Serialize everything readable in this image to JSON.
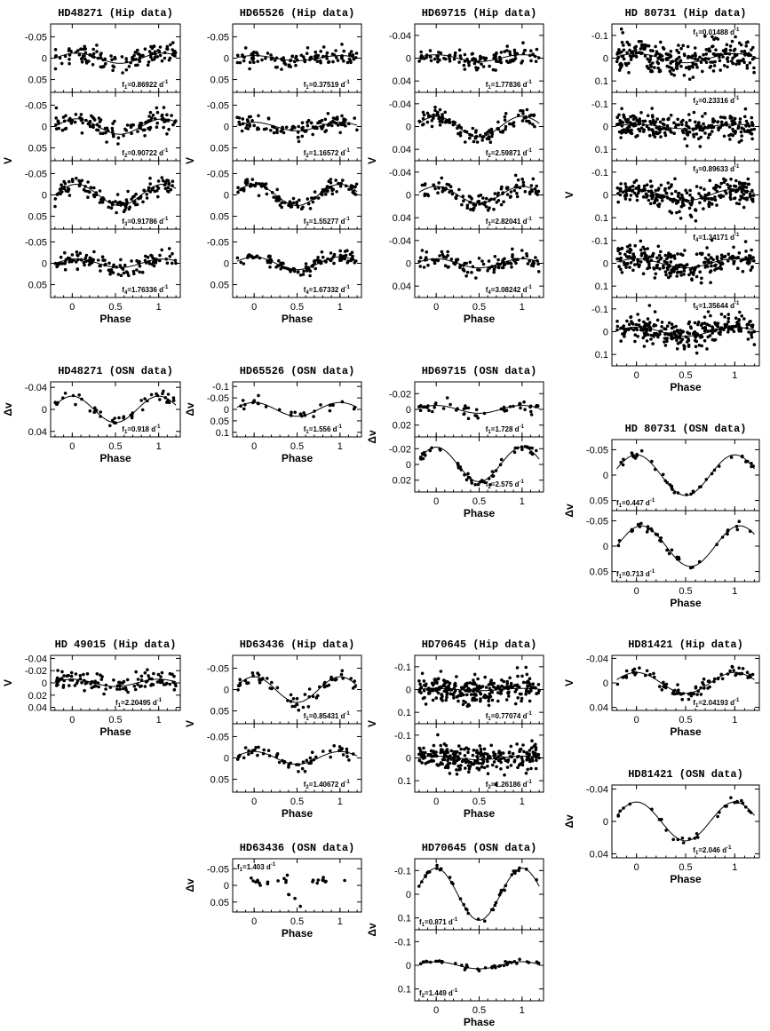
{
  "figure": {
    "x_label": "Phase",
    "x_ticks": [
      "0",
      "0.5",
      "1"
    ]
  },
  "chart_data": [
    {
      "type": "scatter",
      "title": "HD48271 (Hip data)",
      "ylabel": "V",
      "panels": [
        {
          "ylim": [
            0.08,
            -0.08
          ],
          "yticks": [
            "-0.05",
            "0",
            "0.05"
          ],
          "flabel": "f1=0.86922 d-1",
          "amp": 0.012,
          "scatter": 0.012,
          "npts": 120,
          "phase": 0.55
        },
        {
          "ylim": [
            0.08,
            -0.08
          ],
          "yticks": [
            "-0.05",
            "0",
            "0.05"
          ],
          "flabel": "f2=0.90722 d-1",
          "amp": 0.018,
          "scatter": 0.012,
          "npts": 120,
          "phase": 0.55
        },
        {
          "ylim": [
            0.08,
            -0.08
          ],
          "yticks": [
            "-0.05",
            "0",
            "0.05"
          ],
          "flabel": "f3=0.91786 d-1",
          "amp": 0.025,
          "scatter": 0.01,
          "npts": 120,
          "phase": 0.55
        },
        {
          "ylim": [
            0.08,
            -0.08
          ],
          "yticks": [
            "-0.05",
            "0",
            "0.05"
          ],
          "flabel": "f4=1.76336 d-1",
          "amp": 0.01,
          "scatter": 0.01,
          "npts": 120,
          "phase": 0.55
        }
      ]
    },
    {
      "type": "scatter",
      "title": "HD65526 (Hip data)",
      "ylabel": "V",
      "panels": [
        {
          "ylim": [
            0.08,
            -0.08
          ],
          "yticks": [
            "-0.05",
            "0",
            "0.05"
          ],
          "flabel": "f1=0.37519 d-1",
          "amp": 0.006,
          "scatter": 0.01,
          "npts": 110,
          "phase": 0.5
        },
        {
          "ylim": [
            0.08,
            -0.08
          ],
          "yticks": [
            "-0.05",
            "0",
            "0.05"
          ],
          "flabel": "f2=1.16572 d-1",
          "amp": 0.01,
          "scatter": 0.01,
          "npts": 110,
          "phase": 0.5
        },
        {
          "ylim": [
            0.08,
            -0.08
          ],
          "yticks": [
            "-0.05",
            "0",
            "0.05"
          ],
          "flabel": "f3=1.55277 d-1",
          "amp": 0.025,
          "scatter": 0.008,
          "npts": 110,
          "phase": 0.5
        },
        {
          "ylim": [
            0.08,
            -0.08
          ],
          "yticks": [
            "-0.05",
            "0",
            "0.05"
          ],
          "flabel": "f4=1.67332 d-1",
          "amp": 0.015,
          "scatter": 0.008,
          "npts": 110,
          "phase": 0.5
        }
      ]
    },
    {
      "type": "scatter",
      "title": "HD69715 (Hip data)",
      "ylabel": "V",
      "panels": [
        {
          "ylim": [
            0.06,
            -0.06
          ],
          "yticks": [
            "-0.04",
            "0",
            "0.04"
          ],
          "flabel": "f1=1.77836 d-1",
          "amp": 0.006,
          "scatter": 0.008,
          "npts": 110,
          "phase": 0.5
        },
        {
          "ylim": [
            0.06,
            -0.06
          ],
          "yticks": [
            "-0.04",
            "0",
            "0.04"
          ],
          "flabel": "f2=2.59871 d-1",
          "amp": 0.018,
          "scatter": 0.008,
          "npts": 110,
          "phase": 0.5
        },
        {
          "ylim": [
            0.06,
            -0.06
          ],
          "yticks": [
            "-0.04",
            "0",
            "0.04"
          ],
          "flabel": "f3=2.82041 d-1",
          "amp": 0.015,
          "scatter": 0.008,
          "npts": 110,
          "phase": 0.5
        },
        {
          "ylim": [
            0.06,
            -0.06
          ],
          "yticks": [
            "-0.04",
            "0",
            "0.04"
          ],
          "flabel": "f4=3.08242 d-1",
          "amp": 0.008,
          "scatter": 0.008,
          "npts": 110,
          "phase": 0.5
        }
      ]
    },
    {
      "type": "scatter",
      "title": "HD 80731 (Hip data)",
      "ylabel": "V",
      "panels": [
        {
          "ylim": [
            0.15,
            -0.15
          ],
          "yticks": [
            "-0.1",
            "0",
            "0.1"
          ],
          "flabel": "f1=0.01488 d-1",
          "amp": 0.02,
          "scatter": 0.035,
          "npts": 260,
          "phase": 0.5
        },
        {
          "ylim": [
            0.15,
            -0.15
          ],
          "yticks": [
            "-0.1",
            "0",
            "0.1"
          ],
          "flabel": "f2=0.23316 d-1",
          "amp": 0.01,
          "scatter": 0.03,
          "npts": 260,
          "phase": 0.5
        },
        {
          "ylim": [
            0.15,
            -0.15
          ],
          "yticks": [
            "-0.1",
            "0",
            "0.1"
          ],
          "flabel": "f3=0.89633 d-1",
          "amp": 0.025,
          "scatter": 0.03,
          "npts": 260,
          "phase": 0.5
        },
        {
          "ylim": [
            0.15,
            -0.15
          ],
          "yticks": [
            "-0.1",
            "0",
            "0.1"
          ],
          "flabel": "f4=1.34171 d-1",
          "amp": 0.02,
          "scatter": 0.03,
          "npts": 260,
          "phase": 0.5
        },
        {
          "ylim": [
            0.15,
            -0.15
          ],
          "yticks": [
            "-0.1",
            "0",
            "0.1"
          ],
          "flabel": "f5=1.35644 d-1",
          "amp": 0.02,
          "scatter": 0.03,
          "npts": 260,
          "phase": 0.5
        }
      ]
    },
    {
      "type": "scatter",
      "title": "HD48271 (OSN data)",
      "ylabel": "Δv",
      "panels": [
        {
          "ylim": [
            0.05,
            -0.05
          ],
          "yticks": [
            "-0.04",
            "0",
            "0.04"
          ],
          "flabel": "f1=0.918 d-1",
          "amp": 0.024,
          "scatter": 0.006,
          "npts": 45,
          "phase": 0.5
        }
      ]
    },
    {
      "type": "scatter",
      "title": "HD65526 (OSN data)",
      "ylabel": "Δv",
      "panels": [
        {
          "ylim": [
            0.12,
            -0.12
          ],
          "yticks": [
            "-0.1",
            "-0.05",
            "0",
            "0.05",
            "0.1"
          ],
          "flabel": "f1=1.556 d-1",
          "amp": 0.03,
          "scatter": 0.015,
          "npts": 30,
          "phase": 0.5
        }
      ]
    },
    {
      "type": "scatter",
      "title": "HD69715 (OSN data)",
      "ylabel": "Δv",
      "panels": [
        {
          "ylim": [
            0.035,
            -0.035
          ],
          "yticks": [
            "-0.02",
            "0",
            "0.02"
          ],
          "flabel": "f1=1.728 d-1",
          "amp": 0.005,
          "scatter": 0.004,
          "npts": 50,
          "phase": 0.5
        },
        {
          "ylim": [
            0.035,
            -0.035
          ],
          "yticks": [
            "-0.02",
            "0",
            "0.02"
          ],
          "flabel": "f2=2.575 d-1",
          "amp": 0.022,
          "scatter": 0.003,
          "npts": 50,
          "phase": 0.5
        }
      ]
    },
    {
      "type": "scatter",
      "title": "HD 80731 (OSN data)",
      "ylabel": "Δv",
      "panels": [
        {
          "ylim": [
            0.07,
            -0.07
          ],
          "yticks": [
            "-0.05",
            "0",
            "0.05"
          ],
          "flabel": "f1=0.447 d-1",
          "amp": 0.04,
          "scatter": 0.004,
          "npts": 40,
          "phase": 0.5
        },
        {
          "ylim": [
            0.07,
            -0.07
          ],
          "yticks": [
            "-0.05",
            "0",
            "0.05"
          ],
          "flabel": "f1=0.713 d-1",
          "amp": 0.04,
          "scatter": 0.004,
          "npts": 40,
          "phase": 0.55
        }
      ]
    },
    {
      "type": "scatter",
      "title": "HD 49015 (Hip data)",
      "ylabel": "V",
      "panels": [
        {
          "ylim": [
            0.045,
            -0.045
          ],
          "yticks": [
            "-0.04",
            "-0.02",
            "0",
            "0.02",
            "0.04"
          ],
          "flabel": "f1=2.20495 d-1",
          "amp": 0.006,
          "scatter": 0.008,
          "npts": 110,
          "phase": 0.5
        }
      ]
    },
    {
      "type": "scatter",
      "title": "HD63436 (Hip data)",
      "ylabel": "V",
      "panels": [
        {
          "ylim": [
            0.08,
            -0.08
          ],
          "yticks": [
            "-0.05",
            "0",
            "0.05"
          ],
          "flabel": "f1=0.85431 d-1",
          "amp": 0.03,
          "scatter": 0.008,
          "npts": 60,
          "phase": 0.5
        },
        {
          "ylim": [
            0.08,
            -0.08
          ],
          "yticks": [
            "-0.05",
            "0",
            "0.05"
          ],
          "flabel": "f2=1.40672 d-1",
          "amp": 0.015,
          "scatter": 0.008,
          "npts": 60,
          "phase": 0.5
        }
      ]
    },
    {
      "type": "scatter",
      "title": "HD70645 (Hip data)",
      "ylabel": "V",
      "panels": [
        {
          "ylim": [
            0.15,
            -0.15
          ],
          "yticks": [
            "-0.1",
            "0",
            "0.1"
          ],
          "flabel": "f1=0.77074 d-1",
          "amp": 0.005,
          "scatter": 0.03,
          "npts": 260,
          "phase": 0.5
        },
        {
          "ylim": [
            0.15,
            -0.15
          ],
          "yticks": [
            "-0.1",
            "0",
            "0.1"
          ],
          "flabel": "f2=1.26186 d-1",
          "amp": 0.008,
          "scatter": 0.03,
          "npts": 260,
          "phase": 0.5
        }
      ]
    },
    {
      "type": "scatter",
      "title": "HD81421 (Hip data)",
      "ylabel": "V",
      "panels": [
        {
          "ylim": [
            0.045,
            -0.045
          ],
          "yticks": [
            "-0.04",
            "0",
            "0.04"
          ],
          "flabel": "f1=2.04193 d-1",
          "amp": 0.017,
          "scatter": 0.005,
          "npts": 80,
          "phase": 0.5
        }
      ]
    },
    {
      "type": "scatter",
      "title": "HD81421 (OSN data)",
      "ylabel": "Δv",
      "panels": [
        {
          "ylim": [
            0.045,
            -0.045
          ],
          "yticks": [
            "-0.04",
            "0",
            "0.04"
          ],
          "flabel": "f1=2.046 d-1",
          "amp": 0.024,
          "scatter": 0.003,
          "npts": 30,
          "phase": 0.5
        }
      ]
    },
    {
      "type": "scatter",
      "title": "HD63436 (OSN data)",
      "ylabel": "Δv",
      "panels": [
        {
          "ylim": [
            0.08,
            -0.08
          ],
          "yticks": [
            "-0.05",
            "0",
            "0.05"
          ],
          "flabel": "f1=1.403 d-1",
          "amp": 0.0,
          "scatter": 0.015,
          "npts": 28,
          "phase": 0.5,
          "nocurve": true
        }
      ]
    },
    {
      "type": "scatter",
      "title": "HD70645 (OSN data)",
      "ylabel": "Δv",
      "panels": [
        {
          "ylim": [
            0.15,
            -0.15
          ],
          "yticks": [
            "-0.1",
            "0",
            "0.1"
          ],
          "flabel": "f1=0.871 d-1",
          "amp": 0.11,
          "scatter": 0.006,
          "npts": 40,
          "phase": 0.5
        },
        {
          "ylim": [
            0.15,
            -0.15
          ],
          "yticks": [
            "-0.1",
            "0",
            "0.1"
          ],
          "flabel": "f2=1.449 d-1",
          "amp": 0.015,
          "scatter": 0.005,
          "npts": 40,
          "phase": 0.5
        }
      ]
    }
  ]
}
